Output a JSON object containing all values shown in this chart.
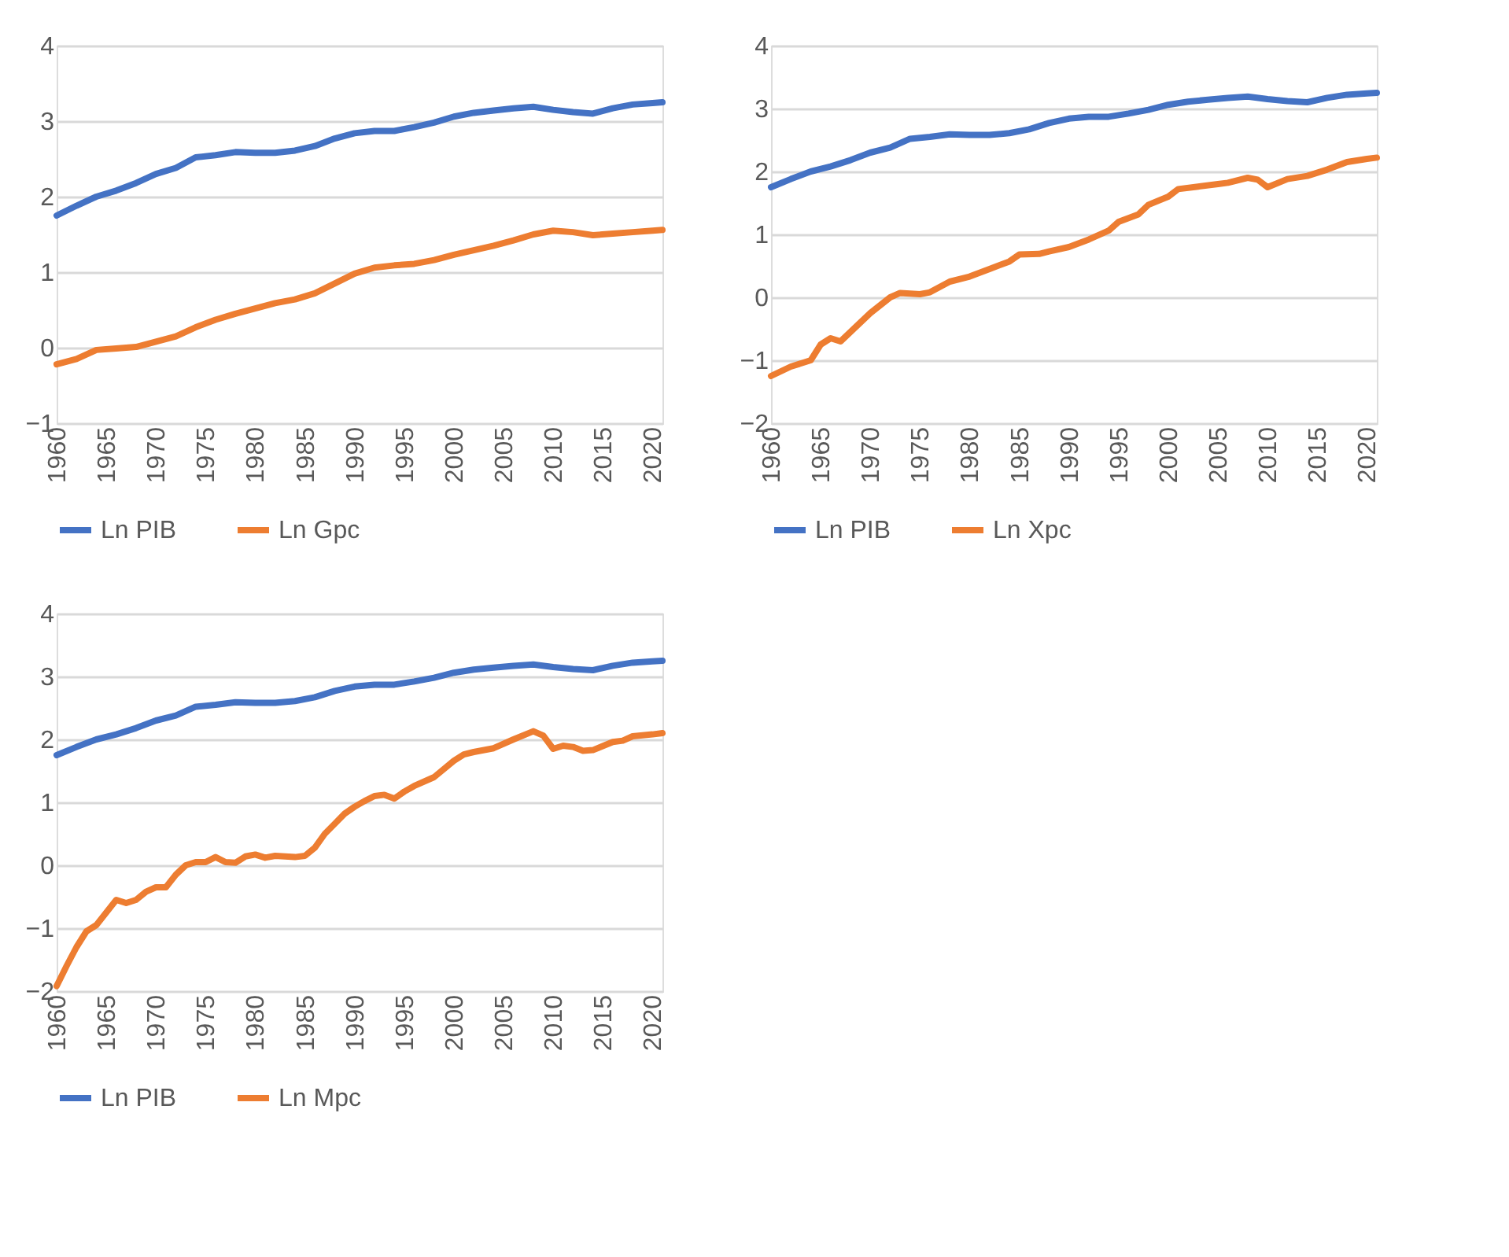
{
  "chart_data": [
    {
      "type": "line",
      "xlim": [
        1960,
        2021
      ],
      "xticks": [
        1960,
        1965,
        1970,
        1975,
        1980,
        1985,
        1990,
        1995,
        2000,
        2005,
        2010,
        2015,
        2020
      ],
      "ylim": [
        -1,
        4
      ],
      "yticks": [
        -1,
        0,
        1,
        2,
        3,
        4
      ],
      "grid": "y",
      "legend": "bottom",
      "line_style": "solid",
      "marker": "none",
      "series": [
        {
          "name": "Ln PIB",
          "color": "#4472c4",
          "x": [
            1960,
            1962,
            1964,
            1966,
            1968,
            1970,
            1972,
            1974,
            1976,
            1978,
            1980,
            1982,
            1984,
            1986,
            1988,
            1990,
            1992,
            1994,
            1996,
            1998,
            2000,
            2002,
            2004,
            2006,
            2008,
            2010,
            2012,
            2014,
            2016,
            2018,
            2020,
            2021
          ],
          "values": [
            1.75,
            1.88,
            2.0,
            2.08,
            2.18,
            2.3,
            2.38,
            2.52,
            2.55,
            2.59,
            2.58,
            2.58,
            2.61,
            2.67,
            2.77,
            2.84,
            2.87,
            2.87,
            2.92,
            2.98,
            3.06,
            3.11,
            3.14,
            3.17,
            3.19,
            3.15,
            3.12,
            3.1,
            3.17,
            3.22,
            3.24,
            3.25
          ]
        },
        {
          "name": "Ln Gpc",
          "color": "#ed7d31",
          "x": [
            1960,
            1962,
            1964,
            1966,
            1968,
            1970,
            1972,
            1974,
            1976,
            1978,
            1980,
            1982,
            1984,
            1986,
            1988,
            1990,
            1992,
            1994,
            1996,
            1998,
            2000,
            2002,
            2004,
            2006,
            2008,
            2010,
            2012,
            2014,
            2016,
            2018,
            2020,
            2021
          ],
          "values": [
            -0.22,
            -0.15,
            -0.03,
            -0.01,
            0.01,
            0.08,
            0.15,
            0.27,
            0.37,
            0.45,
            0.52,
            0.59,
            0.64,
            0.72,
            0.85,
            0.98,
            1.06,
            1.09,
            1.11,
            1.16,
            1.23,
            1.29,
            1.35,
            1.42,
            1.5,
            1.55,
            1.53,
            1.49,
            1.51,
            1.53,
            1.55,
            1.56
          ]
        }
      ]
    },
    {
      "type": "line",
      "xlim": [
        1960,
        2021
      ],
      "xticks": [
        1960,
        1965,
        1970,
        1975,
        1980,
        1985,
        1990,
        1995,
        2000,
        2005,
        2010,
        2015,
        2020
      ],
      "ylim": [
        -2,
        4
      ],
      "yticks": [
        -2,
        -1,
        0,
        1,
        2,
        3,
        4
      ],
      "grid": "y",
      "legend": "bottom",
      "line_style": "solid",
      "marker": "none",
      "series": [
        {
          "name": "Ln PIB",
          "color": "#4472c4",
          "x": [
            1960,
            1962,
            1964,
            1966,
            1968,
            1970,
            1972,
            1974,
            1976,
            1978,
            1980,
            1982,
            1984,
            1986,
            1988,
            1990,
            1992,
            1994,
            1996,
            1998,
            2000,
            2002,
            2004,
            2006,
            2008,
            2010,
            2012,
            2014,
            2016,
            2018,
            2020,
            2021
          ],
          "values": [
            1.75,
            1.88,
            2.0,
            2.08,
            2.18,
            2.3,
            2.38,
            2.52,
            2.55,
            2.59,
            2.58,
            2.58,
            2.61,
            2.67,
            2.77,
            2.84,
            2.87,
            2.87,
            2.92,
            2.98,
            3.06,
            3.11,
            3.14,
            3.17,
            3.19,
            3.15,
            3.12,
            3.1,
            3.17,
            3.22,
            3.24,
            3.25
          ]
        },
        {
          "name": "Ln Xpc",
          "color": "#ed7d31",
          "x": [
            1960,
            1962,
            1964,
            1965,
            1966,
            1967,
            1968,
            1970,
            1972,
            1973,
            1975,
            1976,
            1978,
            1980,
            1982,
            1984,
            1985,
            1987,
            1988,
            1990,
            1992,
            1994,
            1995,
            1997,
            1998,
            2000,
            2001,
            2003,
            2005,
            2006,
            2008,
            2009,
            2010,
            2012,
            2014,
            2016,
            2018,
            2020,
            2021
          ],
          "values": [
            -1.25,
            -1.1,
            -1.0,
            -0.75,
            -0.65,
            -0.7,
            -0.55,
            -0.25,
            0.0,
            0.07,
            0.05,
            0.08,
            0.25,
            0.33,
            0.45,
            0.57,
            0.68,
            0.69,
            0.73,
            0.8,
            0.92,
            1.06,
            1.2,
            1.32,
            1.47,
            1.6,
            1.72,
            1.76,
            1.8,
            1.82,
            1.9,
            1.87,
            1.75,
            1.88,
            1.93,
            2.03,
            2.15,
            2.2,
            2.22
          ]
        }
      ]
    },
    {
      "type": "line",
      "xlim": [
        1960,
        2021
      ],
      "xticks": [
        1960,
        1965,
        1970,
        1975,
        1980,
        1985,
        1990,
        1995,
        2000,
        2005,
        2010,
        2015,
        2020
      ],
      "ylim": [
        -2,
        4
      ],
      "yticks": [
        -2,
        -1,
        0,
        1,
        2,
        3,
        4
      ],
      "grid": "y",
      "legend": "bottom",
      "line_style": "solid",
      "marker": "none",
      "series": [
        {
          "name": "Ln PIB",
          "color": "#4472c4",
          "x": [
            1960,
            1962,
            1964,
            1966,
            1968,
            1970,
            1972,
            1974,
            1976,
            1978,
            1980,
            1982,
            1984,
            1986,
            1988,
            1990,
            1992,
            1994,
            1996,
            1998,
            2000,
            2002,
            2004,
            2006,
            2008,
            2010,
            2012,
            2014,
            2016,
            2018,
            2020,
            2021
          ],
          "values": [
            1.75,
            1.88,
            2.0,
            2.08,
            2.18,
            2.3,
            2.38,
            2.52,
            2.55,
            2.59,
            2.58,
            2.58,
            2.61,
            2.67,
            2.77,
            2.84,
            2.87,
            2.87,
            2.92,
            2.98,
            3.06,
            3.11,
            3.14,
            3.17,
            3.19,
            3.15,
            3.12,
            3.1,
            3.17,
            3.22,
            3.24,
            3.25
          ]
        },
        {
          "name": "Ln Mpc",
          "color": "#ed7d31",
          "x": [
            1960,
            1961,
            1962,
            1963,
            1964,
            1965,
            1966,
            1967,
            1968,
            1969,
            1970,
            1971,
            1972,
            1973,
            1974,
            1975,
            1976,
            1977,
            1978,
            1979,
            1980,
            1981,
            1982,
            1984,
            1985,
            1986,
            1987,
            1988,
            1989,
            1990,
            1991,
            1992,
            1993,
            1994,
            1995,
            1996,
            1998,
            2000,
            2001,
            2002,
            2004,
            2006,
            2008,
            2009,
            2010,
            2011,
            2012,
            2013,
            2014,
            2016,
            2017,
            2018,
            2020,
            2021
          ],
          "values": [
            -1.92,
            -1.6,
            -1.3,
            -1.05,
            -0.95,
            -0.75,
            -0.55,
            -0.6,
            -0.55,
            -0.42,
            -0.35,
            -0.35,
            -0.15,
            0.0,
            0.05,
            0.05,
            0.13,
            0.05,
            0.04,
            0.14,
            0.17,
            0.12,
            0.15,
            0.13,
            0.15,
            0.28,
            0.5,
            0.66,
            0.82,
            0.93,
            1.02,
            1.1,
            1.12,
            1.06,
            1.17,
            1.26,
            1.4,
            1.66,
            1.76,
            1.8,
            1.86,
            2.0,
            2.13,
            2.06,
            1.85,
            1.9,
            1.88,
            1.82,
            1.83,
            1.96,
            1.98,
            2.05,
            2.08,
            2.1
          ]
        }
      ]
    }
  ]
}
